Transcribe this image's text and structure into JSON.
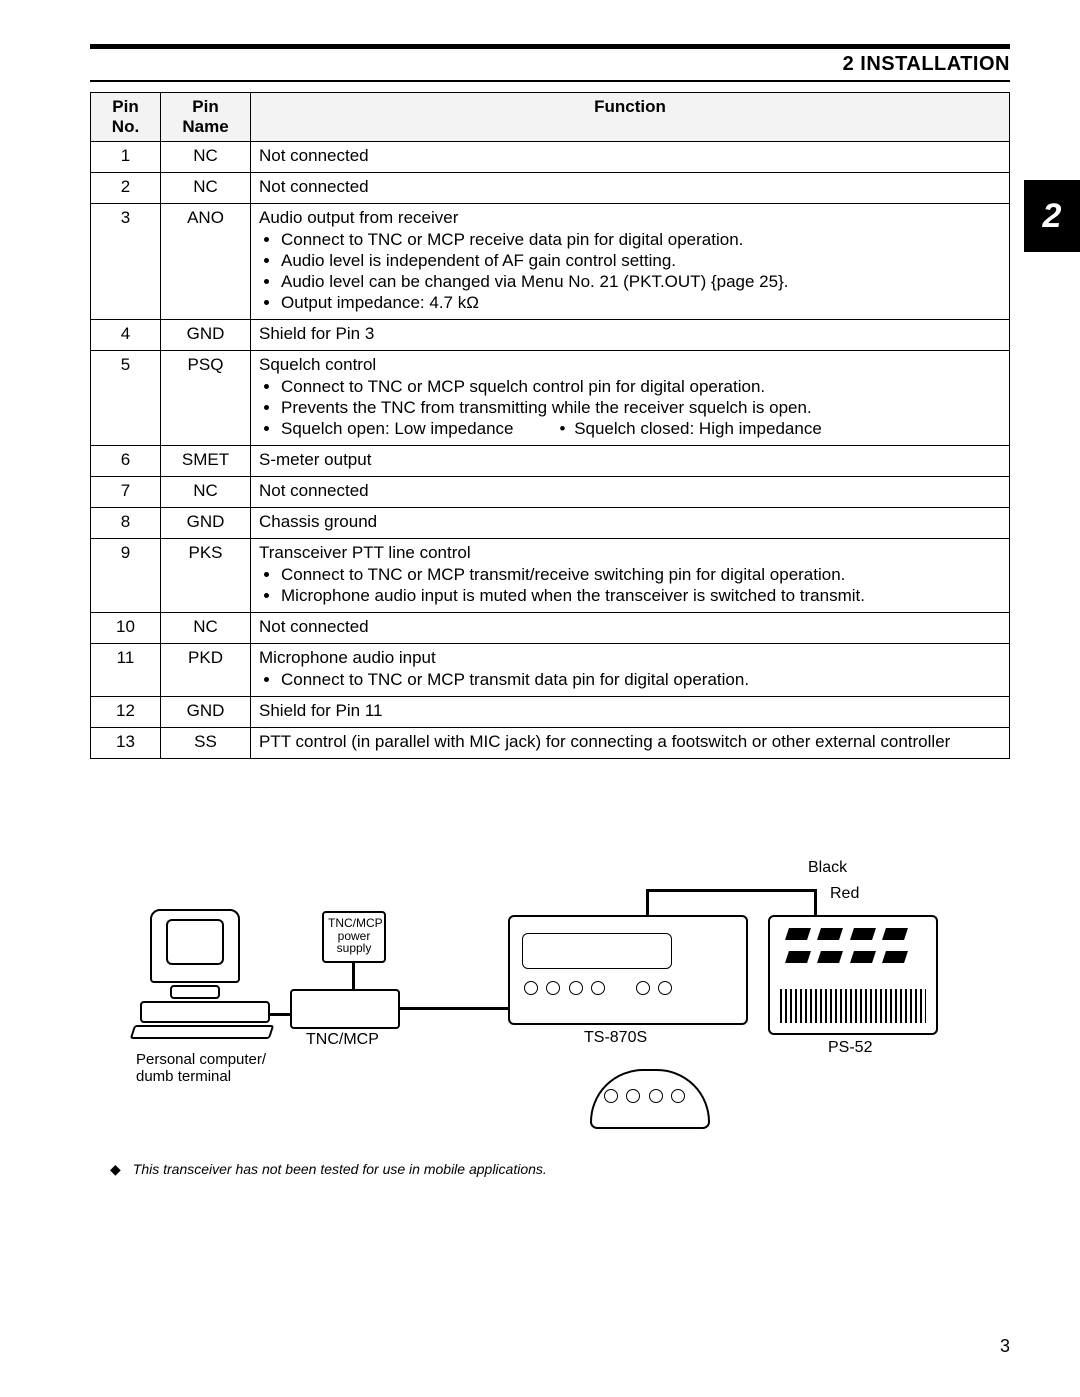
{
  "header": {
    "title": "2 INSTALLATION"
  },
  "side_tab": "2",
  "table": {
    "columns": [
      "Pin No.",
      "Pin Name",
      "Function"
    ],
    "rows": [
      {
        "no": "1",
        "name": "NC",
        "main": "Not connected",
        "bullets": []
      },
      {
        "no": "2",
        "name": "NC",
        "main": "Not connected",
        "bullets": []
      },
      {
        "no": "3",
        "name": "ANO",
        "main": "Audio output from receiver",
        "bullets": [
          "Connect to TNC or MCP receive data pin for digital operation.",
          "Audio level is independent of AF gain control setting.",
          "Audio level can be changed via Menu No. 21 (PKT.OUT) {page 25}.",
          "Output impedance: 4.7 kΩ"
        ]
      },
      {
        "no": "4",
        "name": "GND",
        "main": "Shield for Pin 3",
        "bullets": []
      },
      {
        "no": "5",
        "name": "PSQ",
        "main": "Squelch control",
        "bullets": [
          "Connect to TNC or MCP squelch control pin for digital operation.",
          "Prevents the TNC from transmitting while the receiver squelch is open."
        ],
        "twocol": {
          "a": "Squelch open: Low impedance",
          "b": "Squelch closed: High impedance"
        }
      },
      {
        "no": "6",
        "name": "SMET",
        "main": "S-meter output",
        "bullets": []
      },
      {
        "no": "7",
        "name": "NC",
        "main": "Not connected",
        "bullets": []
      },
      {
        "no": "8",
        "name": "GND",
        "main": "Chassis ground",
        "bullets": []
      },
      {
        "no": "9",
        "name": "PKS",
        "main": "Transceiver PTT line control",
        "bullets": [
          "Connect to TNC or MCP transmit/receive switching pin for digital operation.",
          "Microphone audio input is muted when the transceiver is switched to transmit."
        ]
      },
      {
        "no": "10",
        "name": "NC",
        "main": "Not connected",
        "bullets": []
      },
      {
        "no": "11",
        "name": "PKD",
        "main": "Microphone audio input",
        "bullets": [
          "Connect to TNC or MCP transmit data pin for digital operation."
        ]
      },
      {
        "no": "12",
        "name": "GND",
        "main": "Shield for Pin 11",
        "bullets": []
      },
      {
        "no": "13",
        "name": "SS",
        "main": "PTT control (in parallel with MIC jack) for connecting a footswitch or other external controller",
        "bullets": []
      }
    ]
  },
  "figure": {
    "labels": {
      "black": "Black",
      "red": "Red",
      "pc": "Personal computer/\ndumb terminal",
      "tncmcp": "TNC/MCP",
      "supply": "TNC/MCP\npower\nsupply",
      "ts": "TS-870S",
      "ps": "PS-52"
    }
  },
  "note": "This transceiver has not been tested for use in mobile applications.",
  "page_number": "3"
}
